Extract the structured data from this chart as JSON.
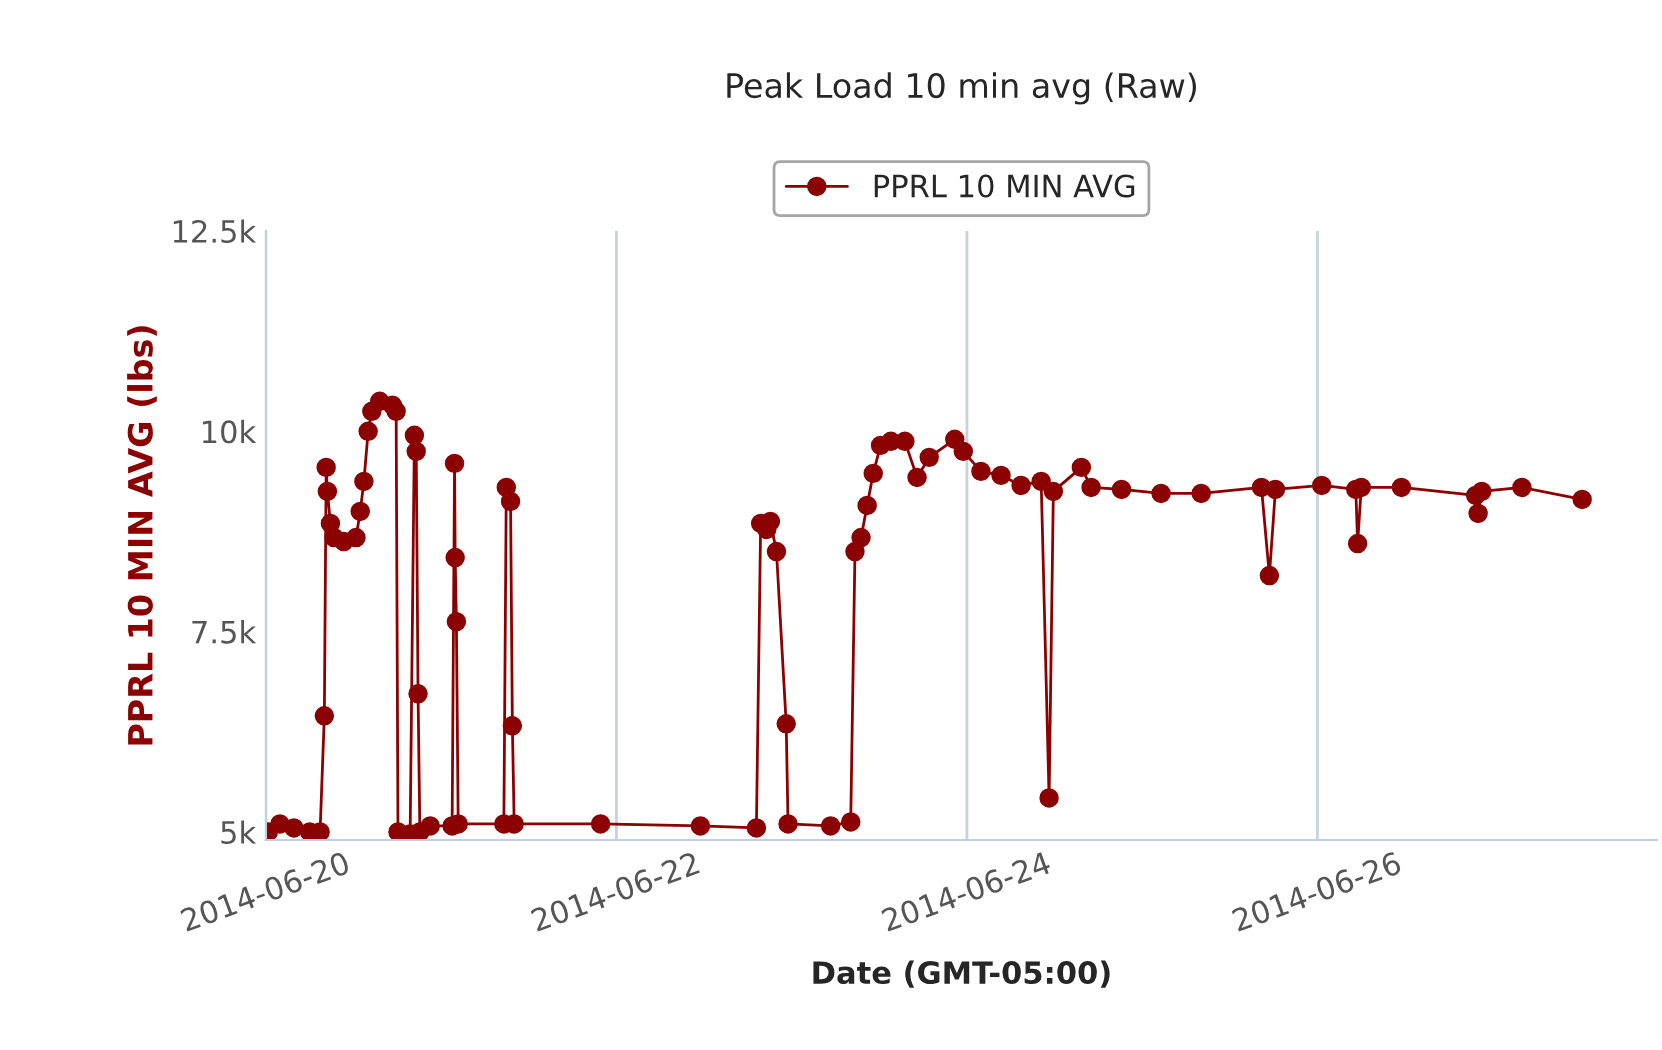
{
  "chart_data": {
    "type": "line",
    "title": "Peak Load 10 min avg (Raw)",
    "xlabel": "Date (GMT-05:00)",
    "ylabel": "PPRL 10 MIN AVG (lbs)",
    "x": [
      "2014-06-20T00:20",
      "2014-06-20T01:55",
      "2014-06-20T03:50",
      "2014-06-20T06:00",
      "2014-06-20T07:25",
      "2014-06-20T08:00",
      "2014-06-20T08:15",
      "2014-06-20T08:25",
      "2014-06-20T08:50",
      "2014-06-20T09:20",
      "2014-06-20T10:40",
      "2014-06-20T12:20",
      "2014-06-20T12:55",
      "2014-06-20T13:25",
      "2014-06-20T14:00",
      "2014-06-20T14:30",
      "2014-06-20T15:35",
      "2014-06-20T17:20",
      "2014-06-20T17:50",
      "2014-06-20T18:05",
      "2014-06-20T19:45",
      "2014-06-20T20:20",
      "2014-06-20T20:35",
      "2014-06-20T20:50",
      "2014-06-20T21:05",
      "2014-06-20T22:30",
      "2014-06-21T01:30",
      "2014-06-21T01:50",
      "2014-06-21T01:55",
      "2014-06-21T02:05",
      "2014-06-21T02:20",
      "2014-06-21T08:35",
      "2014-06-21T08:55",
      "2014-06-21T09:30",
      "2014-06-21T09:45",
      "2014-06-21T10:00",
      "2014-06-21T21:50",
      "2014-06-22T11:30",
      "2014-06-22T19:10",
      "2014-06-22T19:45",
      "2014-06-22T20:35",
      "2014-06-22T21:05",
      "2014-06-22T21:55",
      "2014-06-22T23:15",
      "2014-06-22T23:30",
      "2014-06-23T05:20",
      "2014-06-23T08:05",
      "2014-06-23T08:40",
      "2014-06-23T09:30",
      "2014-06-23T10:20",
      "2014-06-23T11:10",
      "2014-06-23T12:10",
      "2014-06-23T13:35",
      "2014-06-23T15:30",
      "2014-06-23T17:10",
      "2014-06-23T18:50",
      "2014-06-23T22:20",
      "2014-06-23T23:30",
      "2014-06-24T01:55",
      "2014-06-24T04:40",
      "2014-06-24T07:25",
      "2014-06-24T10:10",
      "2014-06-24T11:15",
      "2014-06-24T11:50",
      "2014-06-24T15:40",
      "2014-06-24T17:00",
      "2014-06-24T21:10",
      "2014-06-25T02:35",
      "2014-06-25T08:05",
      "2014-06-25T16:20",
      "2014-06-25T17:25",
      "2014-06-25T18:15",
      "2014-06-26T00:35",
      "2014-06-26T05:15",
      "2014-06-26T05:30",
      "2014-06-26T06:00",
      "2014-06-26T11:30",
      "2014-06-26T21:40",
      "2014-06-26T22:00",
      "2014-06-26T22:30",
      "2014-06-27T04:00",
      "2014-06-27T12:15"
    ],
    "series": [
      {
        "name": "PPRL 10 MIN AVG",
        "color": "#8b0000",
        "values": [
          5000,
          5100,
          5050,
          5000,
          5000,
          6450,
          9550,
          9250,
          8850,
          8675,
          8625,
          8675,
          9000,
          9375,
          10000,
          10250,
          10375,
          10325,
          10250,
          5000,
          4975,
          9950,
          9750,
          6725,
          5000,
          5075,
          5075,
          9600,
          8425,
          7625,
          5100,
          5100,
          9300,
          9125,
          6325,
          5100,
          5100,
          5075,
          5050,
          8850,
          8775,
          8875,
          8500,
          6350,
          5100,
          5075,
          5125,
          8500,
          8675,
          9075,
          9475,
          9825,
          9875,
          9875,
          9425,
          9675,
          9900,
          9750,
          9500,
          9450,
          9325,
          9375,
          5425,
          9250,
          9550,
          9300,
          9275,
          9225,
          9225,
          9300,
          8200,
          9275,
          9325,
          9275,
          8600,
          9300,
          9300,
          9200,
          8975,
          9250,
          9300,
          9150
        ]
      }
    ],
    "xlim": [
      "2014-06-20T00:00",
      "2014-06-27T22:30"
    ],
    "xticks": [
      "2014-06-20",
      "2014-06-22",
      "2014-06-24",
      "2014-06-26"
    ],
    "ylim": [
      4900,
      12500
    ],
    "yticks": [
      {
        "value": 5000,
        "label": "5k"
      },
      {
        "value": 7500,
        "label": "7.5k"
      },
      {
        "value": 10000,
        "label": "10k"
      },
      {
        "value": 12500,
        "label": "12.5k"
      }
    ],
    "grid": "x",
    "legend": "top",
    "marker": "circle",
    "line_style": "solid"
  }
}
